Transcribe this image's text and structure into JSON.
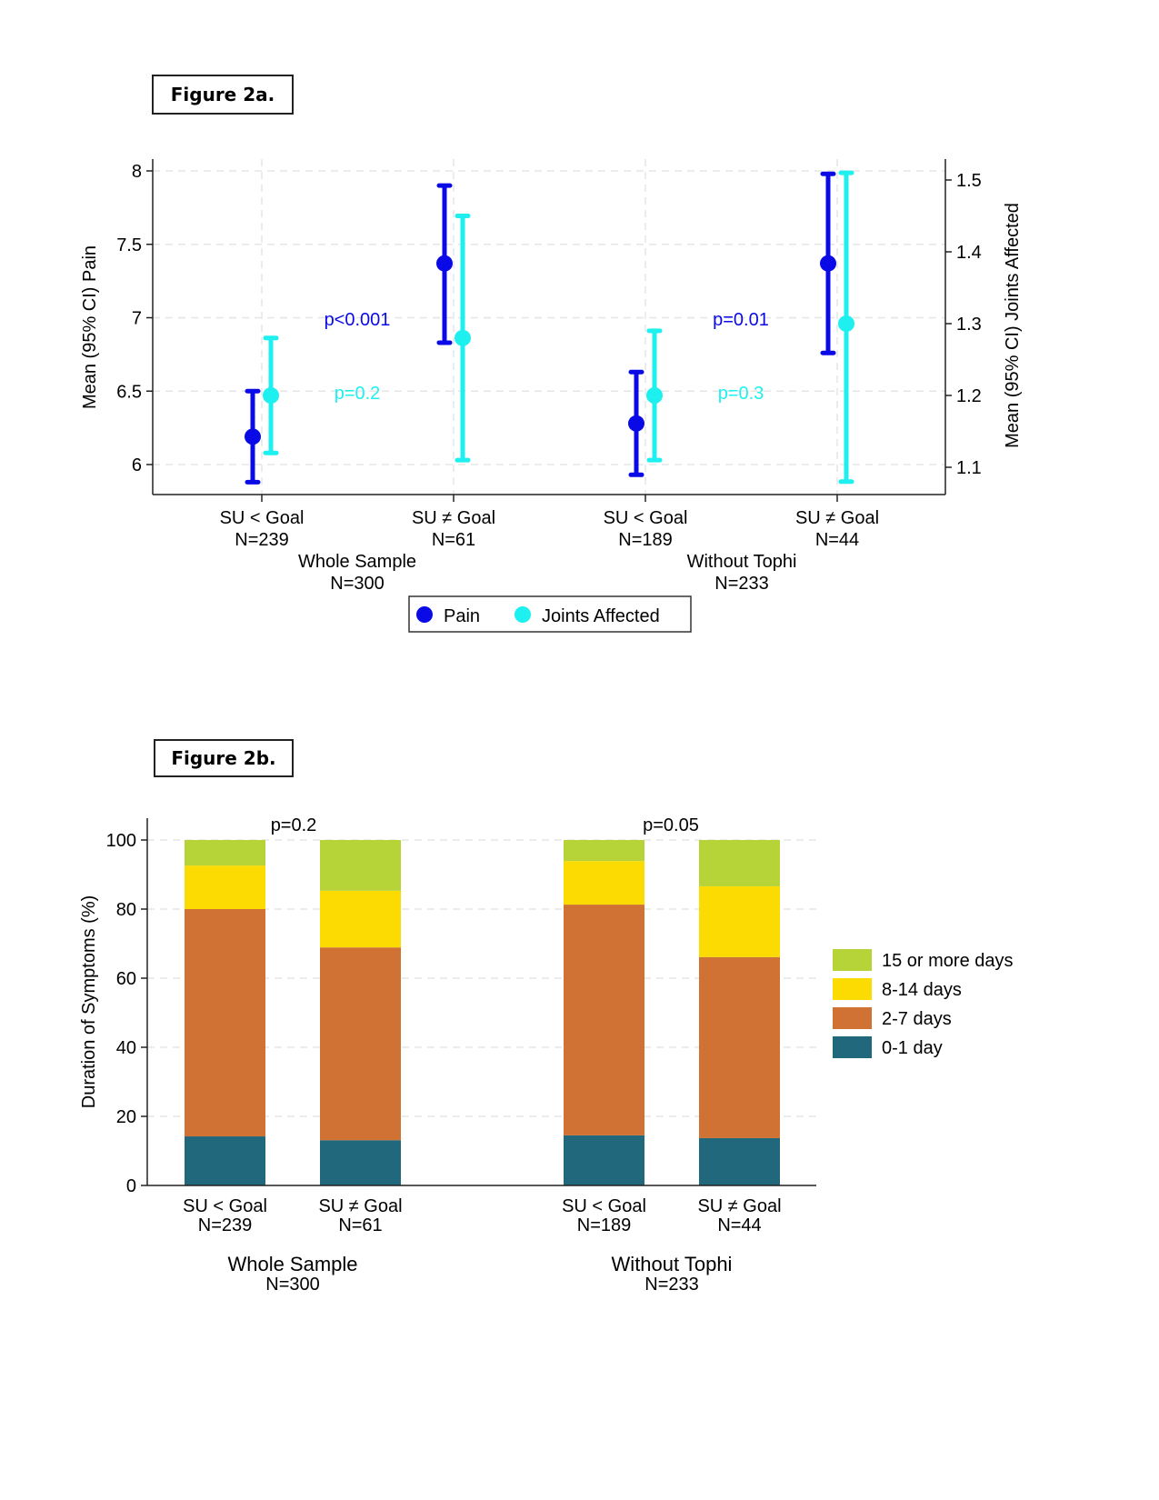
{
  "figures": {
    "fig2a_label": "Figure 2a.",
    "fig2b_label": "Figure 2b."
  },
  "chart_data": [
    {
      "type": "scatter",
      "subtype": "dual-axis point estimates with 95% CI error bars",
      "title": "Figure 2a.",
      "ylabel_left": "Mean (95% CI) Pain",
      "ylabel_right": "Mean (95% CI) Joints Affected",
      "ylim_left": [
        5.8,
        8.1
      ],
      "ylim_right": [
        1.06,
        1.52
      ],
      "yticks_left": [
        "6",
        "6.5",
        "7",
        "7.5",
        "8"
      ],
      "yticks_left_values": [
        6,
        6.5,
        7,
        7.5,
        8
      ],
      "yticks_right": [
        "1.1",
        "1.2",
        "1.3",
        "1.4",
        "1.5"
      ],
      "yticks_right_values": [
        1.1,
        1.2,
        1.3,
        1.4,
        1.5
      ],
      "grid": true,
      "categories": [
        {
          "label": "SU < Goal",
          "n": "N=239"
        },
        {
          "label": "SU ≠ Goal",
          "n": "N=61"
        },
        {
          "label": "SU < Goal",
          "n": "N=189"
        },
        {
          "label": "SU ≠ Goal",
          "n": "N=44"
        }
      ],
      "groups": [
        {
          "label": "Whole Sample",
          "n": "N=300"
        },
        {
          "label": "Without Tophi",
          "n": "N=233"
        }
      ],
      "series": [
        {
          "name": "Pain",
          "axis": "left",
          "color": "#0a0ae6",
          "values": [
            6.19,
            7.37,
            6.28,
            7.37
          ],
          "ci_low": [
            5.88,
            6.83,
            5.93,
            6.76
          ],
          "ci_high": [
            6.5,
            7.9,
            6.63,
            7.98
          ]
        },
        {
          "name": "Joints Affected",
          "axis": "right",
          "color": "#1ef0f0",
          "values": [
            1.2,
            1.28,
            1.2,
            1.3
          ],
          "ci_low": [
            1.12,
            1.11,
            1.11,
            1.08
          ],
          "ci_high": [
            1.28,
            1.45,
            1.29,
            1.51
          ]
        }
      ],
      "annotations": [
        {
          "text": "p<0.001",
          "group": "Whole Sample",
          "series": "Pain",
          "color": "#0a0ae6"
        },
        {
          "text": "p=0.2",
          "group": "Whole Sample",
          "series": "Joints Affected",
          "color": "#1ef0f0"
        },
        {
          "text": "p=0.01",
          "group": "Without Tophi",
          "series": "Pain",
          "color": "#0a0ae6"
        },
        {
          "text": "p=0.3",
          "group": "Without Tophi",
          "series": "Joints Affected",
          "color": "#1ef0f0"
        }
      ],
      "legend": {
        "position": "bottom-center",
        "entries": [
          "Pain",
          "Joints Affected"
        ]
      }
    },
    {
      "type": "bar",
      "subtype": "stacked 100%",
      "title": "Figure 2b.",
      "ylabel": "Duration of Symptoms (%)",
      "xlabel": "",
      "ylim": [
        0,
        100
      ],
      "yticks": [
        "0",
        "20",
        "40",
        "60",
        "80",
        "100"
      ],
      "ytick_values": [
        0,
        20,
        40,
        60,
        80,
        100
      ],
      "grid": true,
      "categories": [
        {
          "label": "SU < Goal",
          "n": "N=239"
        },
        {
          "label": "SU ≠ Goal",
          "n": "N=61"
        },
        {
          "label": "SU < Goal",
          "n": "N=189"
        },
        {
          "label": "SU ≠ Goal",
          "n": "N=44"
        }
      ],
      "groups": [
        {
          "label": "Whole Sample",
          "n": "N=300"
        },
        {
          "label": "Without Tophi",
          "n": "N=233"
        }
      ],
      "series": [
        {
          "name": "0-1 day",
          "color": "#22687d",
          "values": [
            14.2,
            13.1,
            14.5,
            13.7
          ]
        },
        {
          "name": "2-7 days",
          "color": "#cf7234",
          "values": [
            65.8,
            55.8,
            66.8,
            52.4
          ]
        },
        {
          "name": "8-14 days",
          "color": "#fcdb02",
          "values": [
            12.6,
            16.4,
            12.6,
            20.5
          ]
        },
        {
          "name": "15 or more days",
          "color": "#b6d438",
          "values": [
            7.4,
            14.7,
            6.1,
            13.4
          ]
        }
      ],
      "annotations": [
        {
          "text": "p=0.2",
          "group": "Whole Sample"
        },
        {
          "text": "p=0.05",
          "group": "Without Tophi"
        }
      ],
      "legend": {
        "position": "right",
        "entries": [
          "15 or more days",
          "8-14 days",
          "2-7 days",
          "0-1 day"
        ]
      }
    }
  ]
}
